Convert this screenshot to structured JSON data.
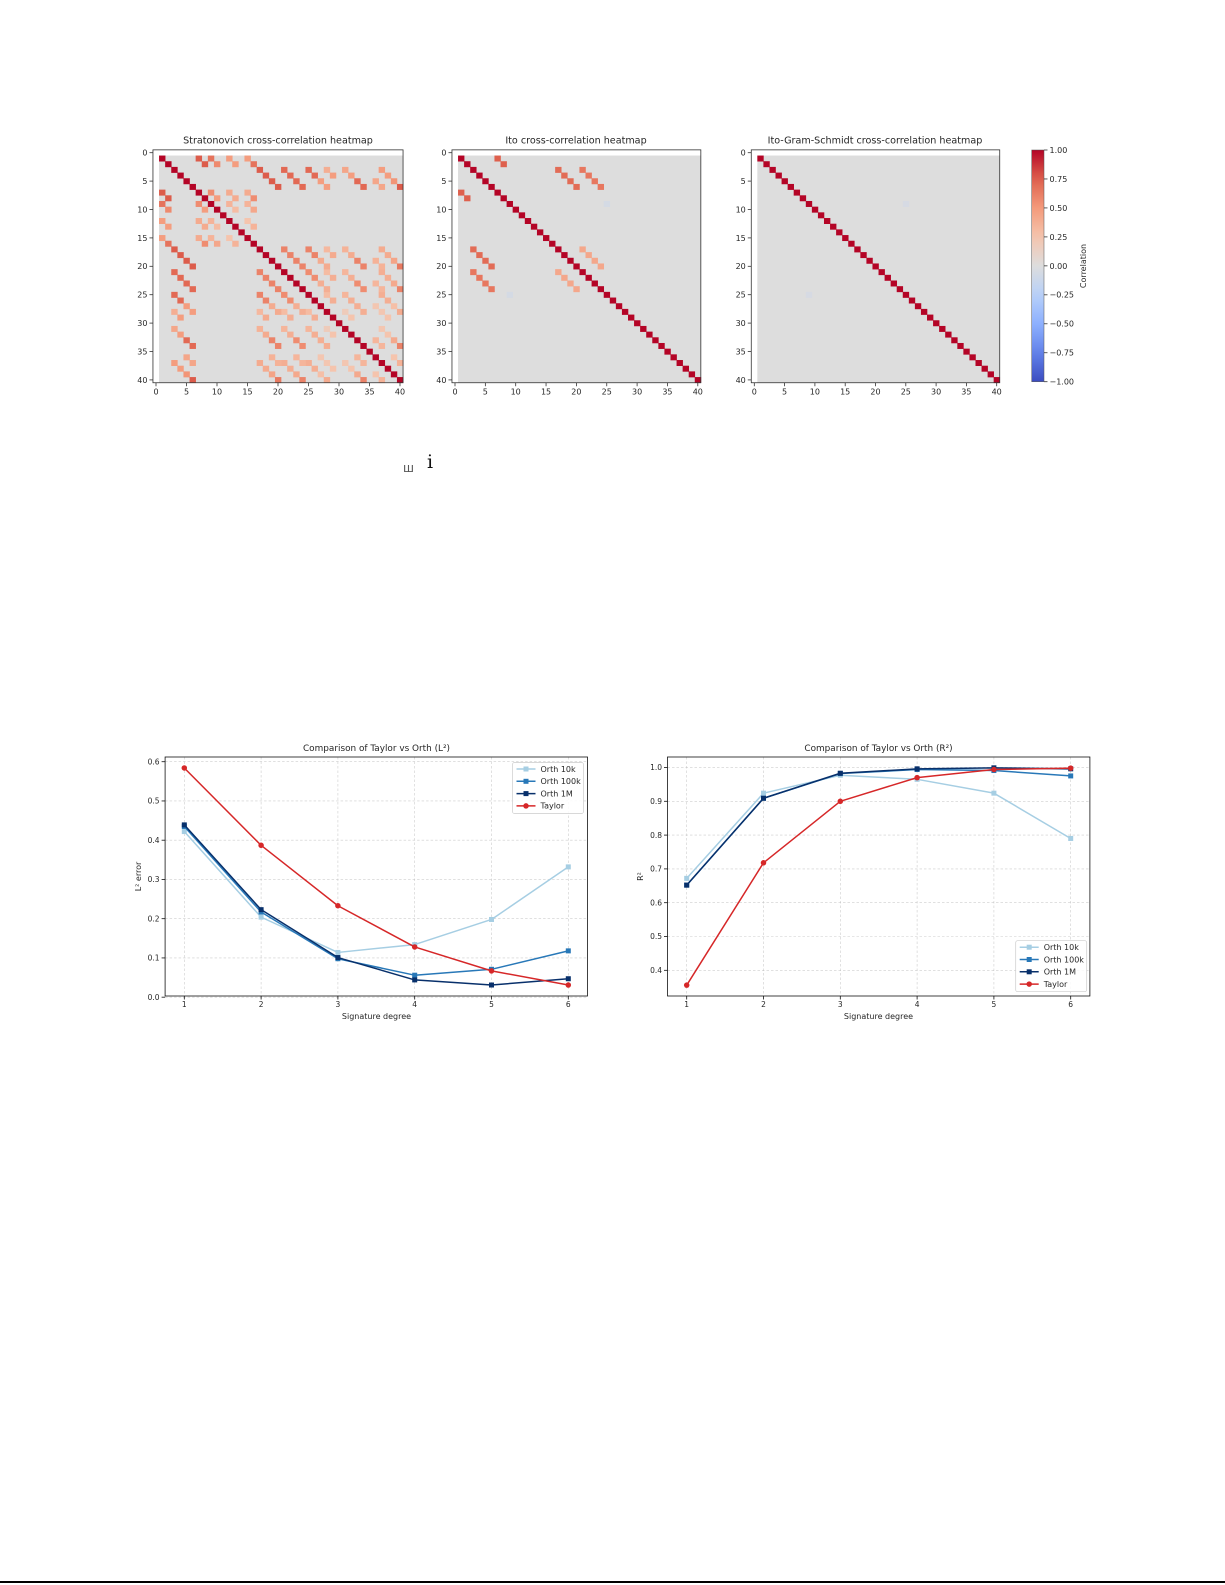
{
  "figure_top": {
    "colorbar": {
      "label": "Correlation",
      "colormap": "coolwarm",
      "ticks": [
        1.0,
        0.75,
        0.5,
        0.25,
        0.0,
        -0.25,
        -0.5,
        -0.75,
        -1.0
      ],
      "tick_labels": [
        "1.00",
        "0.75",
        "0.50",
        "0.25",
        "0.00",
        "−0.25",
        "−0.50",
        "−0.75",
        "−1.00"
      ],
      "stops": [
        {
          "v": -1.0,
          "color": "#3b4cc0"
        },
        {
          "v": -0.75,
          "color": "#6282ea"
        },
        {
          "v": -0.5,
          "color": "#8db0fe"
        },
        {
          "v": -0.25,
          "color": "#b8d0f9"
        },
        {
          "v": 0.0,
          "color": "#dddddd"
        },
        {
          "v": 0.25,
          "color": "#f5c4ad"
        },
        {
          "v": 0.5,
          "color": "#f49a7b"
        },
        {
          "v": 0.75,
          "color": "#de604d"
        },
        {
          "v": 1.0,
          "color": "#b40426"
        }
      ],
      "nan_color": "#ffffff"
    }
  },
  "stray_glyphs": {
    "box_glyph": "ш",
    "letter": "i"
  },
  "chart_data": [
    {
      "type": "heatmap",
      "title": "Stratonovich cross-correlation heatmap",
      "size": 41,
      "xticks": [
        0,
        5,
        10,
        15,
        20,
        25,
        30,
        35,
        40
      ],
      "yticks": [
        0,
        5,
        10,
        15,
        20,
        25,
        30,
        35,
        40
      ],
      "vmin": -1,
      "vmax": 1,
      "nan_indices": [
        0
      ],
      "diagonal": 1.0,
      "symmetric": true,
      "upper_triangle_entries": [
        [
          1,
          7,
          0.76
        ],
        [
          1,
          9,
          0.67
        ],
        [
          1,
          12,
          0.48
        ],
        [
          1,
          15,
          0.48
        ],
        [
          7,
          9,
          0.56
        ],
        [
          7,
          12,
          0.4
        ],
        [
          7,
          15,
          0.4
        ],
        [
          9,
          12,
          0.35
        ],
        [
          9,
          15,
          0.35
        ],
        [
          12,
          15,
          0.25
        ],
        [
          2,
          8,
          0.76
        ],
        [
          2,
          10,
          0.57
        ],
        [
          2,
          13,
          0.48
        ],
        [
          2,
          16,
          0.67
        ],
        [
          8,
          10,
          0.48
        ],
        [
          8,
          13,
          0.4
        ],
        [
          8,
          16,
          0.56
        ],
        [
          10,
          13,
          0.3
        ],
        [
          10,
          16,
          0.42
        ],
        [
          13,
          16,
          0.35
        ],
        [
          3,
          17,
          0.76
        ],
        [
          3,
          21,
          0.71
        ],
        [
          3,
          25,
          0.71
        ],
        [
          3,
          28,
          0.38
        ],
        [
          3,
          31,
          0.43
        ],
        [
          3,
          37,
          0.48
        ],
        [
          17,
          21,
          0.6
        ],
        [
          17,
          25,
          0.6
        ],
        [
          17,
          28,
          0.32
        ],
        [
          17,
          31,
          0.36
        ],
        [
          17,
          37,
          0.4
        ],
        [
          21,
          25,
          0.56
        ],
        [
          21,
          28,
          0.3
        ],
        [
          21,
          31,
          0.34
        ],
        [
          21,
          37,
          0.38
        ],
        [
          25,
          28,
          0.3
        ],
        [
          25,
          31,
          0.34
        ],
        [
          25,
          37,
          0.38
        ],
        [
          28,
          31,
          0.18
        ],
        [
          31,
          37,
          0.23
        ],
        [
          4,
          18,
          0.76
        ],
        [
          4,
          22,
          0.71
        ],
        [
          4,
          26,
          0.71
        ],
        [
          4,
          29,
          0.48
        ],
        [
          4,
          32,
          0.48
        ],
        [
          4,
          38,
          0.48
        ],
        [
          18,
          22,
          0.6
        ],
        [
          18,
          26,
          0.6
        ],
        [
          18,
          29,
          0.4
        ],
        [
          18,
          32,
          0.4
        ],
        [
          18,
          38,
          0.4
        ],
        [
          22,
          26,
          0.56
        ],
        [
          22,
          29,
          0.38
        ],
        [
          22,
          32,
          0.38
        ],
        [
          22,
          38,
          0.38
        ],
        [
          26,
          29,
          0.38
        ],
        [
          26,
          32,
          0.38
        ],
        [
          26,
          38,
          0.38
        ],
        [
          29,
          32,
          0.25
        ],
        [
          29,
          38,
          0.25
        ],
        [
          32,
          38,
          0.25
        ],
        [
          5,
          19,
          0.76
        ],
        [
          5,
          23,
          0.71
        ],
        [
          5,
          27,
          0.48
        ],
        [
          5,
          33,
          0.71
        ],
        [
          5,
          36,
          0.43
        ],
        [
          5,
          39,
          0.52
        ],
        [
          19,
          23,
          0.6
        ],
        [
          19,
          27,
          0.4
        ],
        [
          19,
          33,
          0.6
        ],
        [
          19,
          36,
          0.36
        ],
        [
          19,
          39,
          0.44
        ],
        [
          23,
          27,
          0.38
        ],
        [
          23,
          33,
          0.56
        ],
        [
          23,
          36,
          0.34
        ],
        [
          23,
          39,
          0.41
        ],
        [
          27,
          33,
          0.38
        ],
        [
          27,
          36,
          0.23
        ],
        [
          27,
          39,
          0.28
        ],
        [
          33,
          36,
          0.34
        ],
        [
          33,
          39,
          0.41
        ],
        [
          36,
          39,
          0.25
        ],
        [
          6,
          20,
          0.76
        ],
        [
          6,
          24,
          0.71
        ],
        [
          6,
          28,
          0.48
        ],
        [
          6,
          34,
          0.71
        ],
        [
          6,
          37,
          0.43
        ],
        [
          6,
          40,
          0.76
        ],
        [
          20,
          24,
          0.6
        ],
        [
          20,
          28,
          0.4
        ],
        [
          20,
          34,
          0.6
        ],
        [
          20,
          37,
          0.36
        ],
        [
          20,
          40,
          0.64
        ],
        [
          24,
          28,
          0.38
        ],
        [
          24,
          34,
          0.56
        ],
        [
          24,
          37,
          0.34
        ],
        [
          24,
          40,
          0.6
        ],
        [
          28,
          34,
          0.38
        ],
        [
          28,
          37,
          0.23
        ],
        [
          28,
          40,
          0.4
        ],
        [
          34,
          37,
          0.34
        ],
        [
          34,
          40,
          0.6
        ],
        [
          37,
          40,
          0.36
        ]
      ]
    },
    {
      "type": "heatmap",
      "title": "Ito cross-correlation heatmap",
      "size": 41,
      "xticks": [
        0,
        5,
        10,
        15,
        20,
        25,
        30,
        35,
        40
      ],
      "yticks": [
        0,
        5,
        10,
        15,
        20,
        25,
        30,
        35,
        40
      ],
      "vmin": -1,
      "vmax": 1,
      "nan_indices": [
        0
      ],
      "diagonal": 1.0,
      "symmetric": true,
      "upper_triangle_entries": [
        [
          1,
          7,
          0.75
        ],
        [
          2,
          8,
          0.75
        ],
        [
          3,
          17,
          0.7
        ],
        [
          4,
          18,
          0.7
        ],
        [
          5,
          19,
          0.7
        ],
        [
          6,
          20,
          0.7
        ],
        [
          3,
          21,
          0.65
        ],
        [
          4,
          22,
          0.65
        ],
        [
          5,
          23,
          0.65
        ],
        [
          6,
          24,
          0.65
        ],
        [
          17,
          21,
          0.42
        ],
        [
          18,
          22,
          0.42
        ],
        [
          19,
          23,
          0.42
        ],
        [
          20,
          24,
          0.42
        ],
        [
          9,
          25,
          -0.06
        ]
      ]
    },
    {
      "type": "heatmap",
      "title": "Ito-Gram-Schmidt cross-correlation heatmap",
      "size": 41,
      "xticks": [
        0,
        5,
        10,
        15,
        20,
        25,
        30,
        35,
        40
      ],
      "yticks": [
        0,
        5,
        10,
        15,
        20,
        25,
        30,
        35,
        40
      ],
      "vmin": -1,
      "vmax": 1,
      "nan_indices": [
        0
      ],
      "diagonal": 1.0,
      "symmetric": true,
      "upper_triangle_entries": [
        [
          9,
          25,
          -0.05
        ]
      ]
    },
    {
      "type": "line",
      "title": "Comparison of Taylor vs Orth (L²)",
      "xlabel": "Signature degree",
      "ylabel": "L² error",
      "x": [
        1,
        2,
        3,
        4,
        5,
        6
      ],
      "xtick_labels": [
        "1",
        "2",
        "3",
        "4",
        "5",
        "6"
      ],
      "yticks": [
        0.0,
        0.1,
        0.2,
        0.3,
        0.4,
        0.5,
        0.6
      ],
      "ytick_labels": [
        "0.0",
        "0.1",
        "0.2",
        "0.3",
        "0.4",
        "0.5",
        "0.6"
      ],
      "xlim": [
        0.75,
        6.25
      ],
      "ylim": [
        0.003,
        0.612
      ],
      "grid": true,
      "legend_position": "upper right",
      "series": [
        {
          "name": "Orth 10k",
          "color": "#a6cee3",
          "marker": "square",
          "values": [
            0.422,
            0.204,
            0.114,
            0.134,
            0.198,
            0.332
          ]
        },
        {
          "name": "Orth 100k",
          "color": "#2878b8",
          "marker": "square",
          "values": [
            0.435,
            0.217,
            0.098,
            0.056,
            0.071,
            0.118
          ]
        },
        {
          "name": "Orth 1M",
          "color": "#08306b",
          "marker": "square",
          "values": [
            0.439,
            0.223,
            0.101,
            0.044,
            0.031,
            0.047
          ]
        },
        {
          "name": "Taylor",
          "color": "#d62728",
          "marker": "circle",
          "values": [
            0.584,
            0.387,
            0.233,
            0.128,
            0.067,
            0.031
          ]
        }
      ]
    },
    {
      "type": "line",
      "title": "Comparison of Taylor vs Orth (R²)",
      "xlabel": "Signature degree",
      "ylabel": "R²",
      "x": [
        1,
        2,
        3,
        4,
        5,
        6
      ],
      "xtick_labels": [
        "1",
        "2",
        "3",
        "4",
        "5",
        "6"
      ],
      "yticks": [
        0.4,
        0.5,
        0.6,
        0.7,
        0.8,
        0.9,
        1.0
      ],
      "ytick_labels": [
        "0.4",
        "0.5",
        "0.6",
        "0.7",
        "0.8",
        "0.9",
        "1.0"
      ],
      "xlim": [
        0.75,
        6.25
      ],
      "ylim": [
        0.324,
        1.031
      ],
      "grid": true,
      "legend_position": "lower right",
      "series": [
        {
          "name": "Orth 10k",
          "color": "#a6cee3",
          "marker": "square",
          "values": [
            0.672,
            0.924,
            0.977,
            0.965,
            0.924,
            0.79
          ]
        },
        {
          "name": "Orth 100k",
          "color": "#2878b8",
          "marker": "square",
          "values": [
            0.652,
            0.909,
            0.982,
            0.994,
            0.991,
            0.975
          ]
        },
        {
          "name": "Orth 1M",
          "color": "#08306b",
          "marker": "square",
          "values": [
            0.652,
            0.909,
            0.983,
            0.996,
            0.999,
            0.996
          ]
        },
        {
          "name": "Taylor",
          "color": "#d62728",
          "marker": "circle",
          "values": [
            0.356,
            0.718,
            0.9,
            0.97,
            0.994,
            0.998
          ]
        }
      ]
    }
  ]
}
